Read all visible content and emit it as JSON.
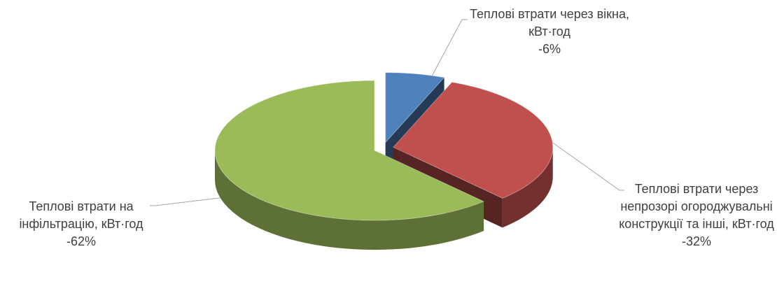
{
  "chart_data": {
    "type": "pie3d",
    "categories": [
      "Теплові втрати через вікна, кВт·год",
      "Теплові втрати через непрозорі огороджувальні конструкції та інші, кВт·год",
      "Теплові втрати на інфільтрацію, кВт·год"
    ],
    "values": [
      -6,
      -32,
      -62
    ],
    "value_labels": [
      "-6%",
      "-32%",
      "-62%"
    ],
    "colors": [
      "#4f81bd",
      "#c0504d",
      "#9bbb59"
    ]
  }
}
